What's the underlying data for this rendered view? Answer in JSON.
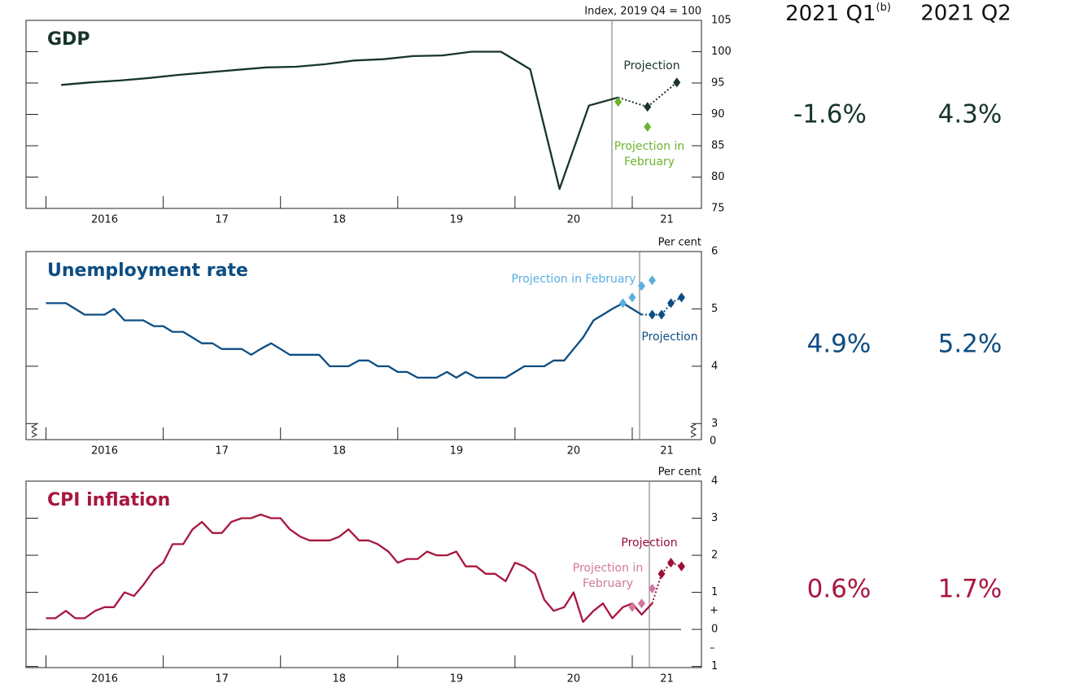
{
  "chart_data": [
    {
      "type": "line",
      "title": "GDP",
      "y_unit_label": "Index, 2019 Q4 = 100",
      "xlim": [
        2015.83,
        2021.59
      ],
      "xticks": [
        2016,
        {
          "value": 2017,
          "label": "17"
        },
        {
          "value": 2018,
          "label": "18"
        },
        {
          "value": 2019,
          "label": "19"
        },
        {
          "value": 2020,
          "label": "20"
        },
        {
          "value": 2021,
          "label": "21"
        }
      ],
      "ylim": [
        75,
        105
      ],
      "yticks": [
        75,
        80,
        85,
        90,
        95,
        100,
        105
      ],
      "series": [
        {
          "color": "#17352a",
          "x": [
            2016.13,
            2016.38,
            2016.63,
            2016.88,
            2017.13,
            2017.38,
            2017.63,
            2017.88,
            2018.13,
            2018.38,
            2018.63,
            2018.88,
            2019.13,
            2019.38,
            2019.63,
            2019.88,
            2020.13,
            2020.38,
            2020.63,
            2020.88
          ],
          "values": [
            94.7,
            95.1,
            95.4,
            95.8,
            96.3,
            96.7,
            97.1,
            97.5,
            97.6,
            98.0,
            98.6,
            98.8,
            99.3,
            99.4,
            100.0,
            100.0,
            97.2,
            78.1,
            91.4,
            92.7
          ]
        },
        {
          "name": "Projection",
          "color": "#17352a",
          "connect": true,
          "x": [
            2021.13,
            2021.38
          ],
          "values": [
            91.2,
            95.1
          ]
        },
        {
          "name": "Projection in February",
          "color": "#6ab42d",
          "x": [
            2020.88,
            2021.13
          ],
          "values": [
            92.0,
            88.0
          ]
        }
      ]
    },
    {
      "type": "line",
      "title": "Unemployment rate",
      "y_unit_label": "Per cent",
      "axis_break_label": "0",
      "xlim": [
        2015.83,
        2021.59
      ],
      "xticks": [
        2016,
        {
          "value": 2017,
          "label": "17"
        },
        {
          "value": 2018,
          "label": "18"
        },
        {
          "value": 2019,
          "label": "19"
        },
        {
          "value": 2020,
          "label": "20"
        },
        {
          "value": 2021,
          "label": "21"
        }
      ],
      "ylim": [
        2.72,
        6
      ],
      "yticks": [
        3,
        4,
        5,
        6
      ],
      "series": [
        {
          "color": "#0d4d82",
          "x": [
            2016,
            2016.08,
            2016.17,
            2016.25,
            2016.33,
            2016.42,
            2016.5,
            2016.58,
            2016.67,
            2016.75,
            2016.83,
            2016.92,
            2017,
            2017.08,
            2017.17,
            2017.25,
            2017.33,
            2017.42,
            2017.5,
            2017.58,
            2017.67,
            2017.75,
            2017.83,
            2017.92,
            2018,
            2018.08,
            2018.17,
            2018.25,
            2018.33,
            2018.42,
            2018.5,
            2018.58,
            2018.67,
            2018.75,
            2018.83,
            2018.92,
            2019,
            2019.08,
            2019.17,
            2019.25,
            2019.33,
            2019.42,
            2019.5,
            2019.58,
            2019.67,
            2019.75,
            2019.83,
            2019.92,
            2020,
            2020.08,
            2020.17,
            2020.25,
            2020.33,
            2020.42,
            2020.5,
            2020.58,
            2020.67,
            2020.75,
            2020.83,
            2020.92,
            2021,
            2021.08
          ],
          "values": [
            5.1,
            5.1,
            5.1,
            5.0,
            4.9,
            4.9,
            4.9,
            5.0,
            4.8,
            4.8,
            4.8,
            4.7,
            4.7,
            4.6,
            4.6,
            4.5,
            4.4,
            4.4,
            4.3,
            4.3,
            4.3,
            4.2,
            4.3,
            4.4,
            4.3,
            4.2,
            4.2,
            4.2,
            4.2,
            4.0,
            4.0,
            4.0,
            4.1,
            4.1,
            4.0,
            4.0,
            3.9,
            3.9,
            3.8,
            3.8,
            3.8,
            3.9,
            3.8,
            3.9,
            3.8,
            3.8,
            3.8,
            3.8,
            3.9,
            4.0,
            4.0,
            4.0,
            4.1,
            4.1,
            4.3,
            4.5,
            4.8,
            4.9,
            5.0,
            5.1,
            5.0,
            4.9
          ]
        },
        {
          "name": "Projection",
          "color": "#0d4d82",
          "connect": true,
          "x": [
            2021.17,
            2021.25,
            2021.33,
            2021.42
          ],
          "values": [
            4.9,
            4.9,
            5.1,
            5.2
          ]
        },
        {
          "name": "Projection in February",
          "color": "#5aaee0",
          "x": [
            2020.92,
            2021,
            2021.08,
            2021.17
          ],
          "values": [
            5.1,
            5.2,
            5.4,
            5.5
          ]
        }
      ]
    },
    {
      "type": "line",
      "title": "CPI inflation",
      "y_unit_label": "Per cent",
      "zero_line": true,
      "sign_labels": [
        "+",
        "–"
      ],
      "xlim": [
        2015.83,
        2021.59
      ],
      "xticks": [
        2016,
        {
          "value": 2017,
          "label": "17"
        },
        {
          "value": 2018,
          "label": "18"
        },
        {
          "value": 2019,
          "label": "19"
        },
        {
          "value": 2020,
          "label": "20"
        },
        {
          "value": 2021,
          "label": "21"
        }
      ],
      "ylim": [
        -1.03,
        4
      ],
      "yticks": [
        {
          "value": -1,
          "label": "1"
        },
        0,
        1,
        2,
        3,
        4
      ],
      "series": [
        {
          "color": "#a8173f",
          "x": [
            2016,
            2016.08,
            2016.17,
            2016.25,
            2016.33,
            2016.42,
            2016.5,
            2016.58,
            2016.67,
            2016.75,
            2016.83,
            2016.92,
            2017,
            2017.08,
            2017.17,
            2017.25,
            2017.33,
            2017.42,
            2017.5,
            2017.58,
            2017.67,
            2017.75,
            2017.83,
            2017.92,
            2018,
            2018.08,
            2018.17,
            2018.25,
            2018.33,
            2018.42,
            2018.5,
            2018.58,
            2018.67,
            2018.75,
            2018.83,
            2018.92,
            2019,
            2019.08,
            2019.17,
            2019.25,
            2019.33,
            2019.42,
            2019.5,
            2019.58,
            2019.67,
            2019.75,
            2019.83,
            2019.92,
            2020,
            2020.08,
            2020.17,
            2020.25,
            2020.33,
            2020.42,
            2020.5,
            2020.58,
            2020.67,
            2020.75,
            2020.83,
            2020.92,
            2021,
            2021.08,
            2021.17
          ],
          "values": [
            0.3,
            0.3,
            0.5,
            0.3,
            0.3,
            0.5,
            0.6,
            0.6,
            1.0,
            0.9,
            1.2,
            1.6,
            1.8,
            2.3,
            2.3,
            2.7,
            2.9,
            2.6,
            2.6,
            2.9,
            3.0,
            3.0,
            3.1,
            3.0,
            3.0,
            2.7,
            2.5,
            2.4,
            2.4,
            2.4,
            2.5,
            2.7,
            2.4,
            2.4,
            2.3,
            2.1,
            1.8,
            1.9,
            1.9,
            2.1,
            2.0,
            2.0,
            2.1,
            1.7,
            1.7,
            1.5,
            1.5,
            1.3,
            1.8,
            1.7,
            1.5,
            0.8,
            0.5,
            0.6,
            1.0,
            0.2,
            0.5,
            0.7,
            0.3,
            0.6,
            0.7,
            0.4,
            0.7
          ]
        },
        {
          "name": "Projection",
          "color": "#9b0e35",
          "connect": true,
          "x": [
            2021.25,
            2021.33,
            2021.42
          ],
          "values": [
            1.5,
            1.8,
            1.7
          ]
        },
        {
          "name": "Projection in February",
          "color": "#d2789f",
          "x": [
            2021,
            2021.08,
            2021.17
          ],
          "values": [
            0.6,
            0.7,
            1.1
          ]
        }
      ]
    }
  ],
  "table": {
    "headers": [
      {
        "text": "2021 Q1",
        "note": "(b)"
      },
      {
        "text": "2021 Q2"
      }
    ],
    "rows": [
      [
        "-1.6%",
        "4.3%"
      ],
      [
        "4.9%",
        "5.2%"
      ],
      [
        "0.6%",
        "1.7%"
      ]
    ]
  }
}
